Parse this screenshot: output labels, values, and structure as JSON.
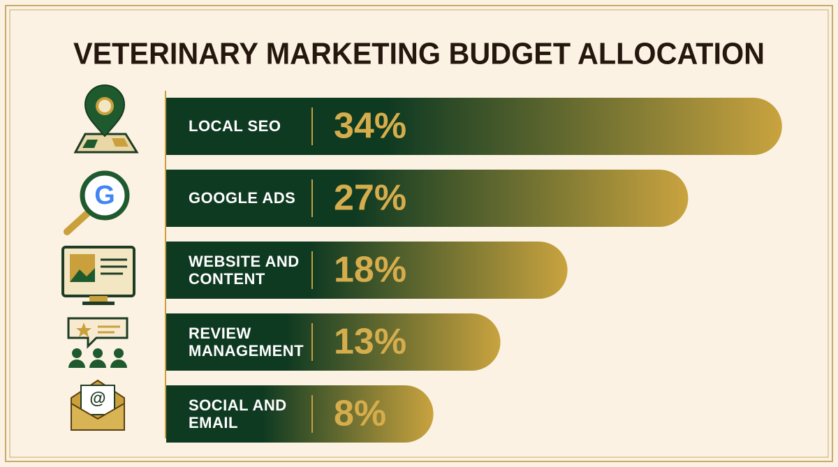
{
  "chart_data": {
    "type": "bar",
    "orientation": "horizontal",
    "title": "VETERINARY MARKETING BUDGET ALLOCATION",
    "categories": [
      "LOCAL SEO",
      "GOOGLE ADS",
      "WEBSITE AND CONTENT",
      "REVIEW MANAGEMENT",
      "SOCIAL AND EMAIL"
    ],
    "values": [
      34,
      27,
      18,
      13,
      8
    ],
    "value_labels": [
      "34%",
      "27%",
      "18%",
      "13%",
      "8%"
    ],
    "gradient": [
      "#0f3a22",
      "#c9a33f"
    ]
  }
}
